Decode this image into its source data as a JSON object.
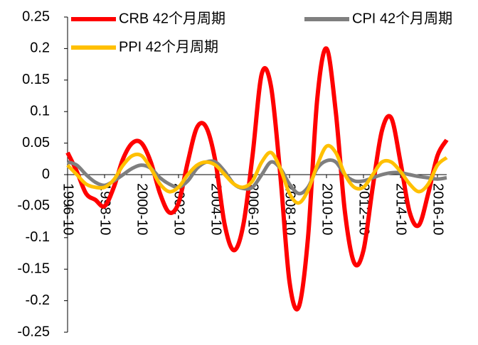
{
  "chart_data": {
    "type": "line",
    "categories": [
      "1996-10",
      null,
      null,
      null,
      "1998-10",
      null,
      null,
      null,
      "2000-10",
      null,
      null,
      null,
      "2002-10",
      null,
      null,
      null,
      "2004-10",
      null,
      null,
      null,
      "2006-10",
      null,
      null,
      null,
      "2008-10",
      null,
      null,
      null,
      "2010-10",
      null,
      null,
      null,
      "2012-10",
      null,
      null,
      null,
      "2014-10",
      null,
      null,
      null,
      "2016-10",
      null
    ],
    "series": [
      {
        "name": "CRB 42个月周期",
        "color": "#ff0000",
        "values": [
          0.035,
          0.005,
          -0.03,
          -0.04,
          -0.05,
          -0.02,
          0.025,
          0.05,
          0.05,
          0.02,
          -0.03,
          -0.06,
          -0.045,
          0.02,
          0.075,
          0.075,
          0.02,
          -0.08,
          -0.12,
          -0.08,
          0.03,
          0.16,
          0.14,
          0.0,
          -0.17,
          -0.21,
          -0.1,
          0.12,
          0.2,
          0.1,
          -0.06,
          -0.14,
          -0.12,
          -0.02,
          0.07,
          0.09,
          0.02,
          -0.06,
          -0.08,
          -0.03,
          0.03,
          0.055
        ]
      },
      {
        "name": "CPI 42个月周期",
        "color": "#7f7f7f",
        "values": [
          0.02,
          0.015,
          0.0,
          -0.012,
          -0.017,
          -0.01,
          0.0,
          0.01,
          0.015,
          0.01,
          -0.005,
          -0.015,
          -0.02,
          -0.01,
          0.01,
          0.02,
          0.02,
          0.005,
          -0.015,
          -0.022,
          -0.02,
          0.0,
          0.02,
          0.01,
          -0.015,
          -0.03,
          -0.02,
          0.01,
          0.022,
          0.02,
          0.0,
          -0.01,
          -0.01,
          -0.005,
          0.0,
          0.003,
          0.003,
          0.0,
          -0.003,
          -0.005,
          -0.007,
          -0.005
        ]
      },
      {
        "name": "PPI 42个月周期",
        "color": "#ffc000",
        "values": [
          0.015,
          0.0,
          -0.015,
          -0.02,
          -0.02,
          -0.008,
          0.015,
          0.03,
          0.03,
          0.01,
          -0.015,
          -0.027,
          -0.02,
          0.0,
          0.015,
          0.02,
          0.015,
          0.0,
          -0.015,
          -0.02,
          -0.01,
          0.02,
          0.035,
          0.01,
          -0.03,
          -0.045,
          -0.025,
          0.015,
          0.045,
          0.035,
          0.0,
          -0.02,
          -0.02,
          0.0,
          0.02,
          0.02,
          0.005,
          -0.015,
          -0.027,
          -0.015,
          0.015,
          0.027
        ]
      }
    ],
    "ylim": [
      -0.25,
      0.25
    ],
    "yticks": [
      0.25,
      0.2,
      0.15,
      0.1,
      0.05,
      0,
      -0.05,
      -0.1,
      -0.15,
      -0.2,
      -0.25
    ],
    "grid": false
  }
}
